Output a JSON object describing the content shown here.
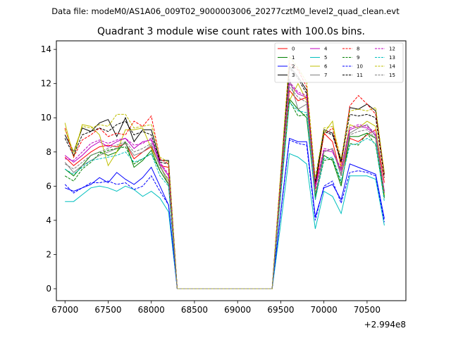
{
  "chart_data": {
    "type": "line",
    "suptitle": "Data file: modeM0/AS1A06_009T02_9000003006_20277cztM0_level2_quad_clean.evt",
    "title": "Quadrant 3 module wise count rates with 100.0s bins.",
    "xlabel": "",
    "ylabel": "",
    "x_offset_label": "+2.994e8",
    "xlim": [
      66900,
      70950
    ],
    "ylim": [
      -0.7,
      14.5
    ],
    "xticks": [
      67000,
      67500,
      68000,
      68500,
      69000,
      69500,
      70000,
      70500
    ],
    "xtick_labels": [
      "67000",
      "67500",
      "68000",
      "68500",
      "69000",
      "69500",
      "70000",
      "70500"
    ],
    "yticks": [
      0,
      2,
      4,
      6,
      8,
      10,
      12,
      14
    ],
    "ytick_labels": [
      "0",
      "2",
      "4",
      "6",
      "8",
      "10",
      "12",
      "14"
    ],
    "x": [
      67000,
      67100,
      67200,
      67300,
      67400,
      67500,
      67600,
      67700,
      67800,
      67900,
      68000,
      68100,
      68200,
      68300,
      68400,
      68500,
      68600,
      68700,
      68800,
      68900,
      69000,
      69100,
      69200,
      69300,
      69400,
      69500,
      69600,
      69700,
      69800,
      69900,
      70000,
      70100,
      70200,
      70300,
      70400,
      70500,
      70600,
      70700
    ],
    "series": [
      {
        "name": "0",
        "color": "#ff0000",
        "dash": "solid",
        "values": [
          7.7,
          7.2,
          7.6,
          8.0,
          8.3,
          8.4,
          8.3,
          8.5,
          7.6,
          8.0,
          8.3,
          7.2,
          7.1,
          0,
          0,
          0,
          0,
          0,
          0,
          0,
          0,
          0,
          0,
          0,
          0,
          5.8,
          11.6,
          11.0,
          11.2,
          5.8,
          9.1,
          8.6,
          6.6,
          8.8,
          8.6,
          9.0,
          9.3,
          6.2
        ]
      },
      {
        "name": "1",
        "color": "#008000",
        "dash": "solid",
        "values": [
          7.0,
          6.6,
          7.2,
          7.8,
          8.0,
          7.8,
          8.0,
          8.6,
          7.1,
          7.5,
          8.1,
          6.9,
          6.1,
          0,
          0,
          0,
          0,
          0,
          0,
          0,
          0,
          0,
          0,
          0,
          0,
          5.7,
          11.1,
          10.5,
          10.0,
          5.4,
          7.8,
          7.5,
          6.0,
          8.9,
          8.9,
          9.1,
          8.8,
          5.4
        ]
      },
      {
        "name": "2",
        "color": "#0000ff",
        "dash": "solid",
        "values": [
          5.9,
          5.7,
          5.9,
          6.1,
          6.5,
          6.2,
          6.8,
          6.4,
          6.1,
          6.5,
          7.1,
          6.0,
          4.9,
          0,
          0,
          0,
          0,
          0,
          0,
          0,
          0,
          0,
          0,
          0,
          0,
          4.5,
          8.8,
          8.6,
          8.6,
          4.2,
          5.9,
          6.1,
          5.2,
          7.3,
          7.1,
          6.9,
          6.7,
          4.1
        ]
      },
      {
        "name": "3",
        "color": "#000000",
        "dash": "solid",
        "values": [
          9.0,
          8.0,
          9.4,
          9.2,
          9.7,
          9.9,
          8.9,
          10.0,
          8.6,
          9.3,
          9.3,
          7.5,
          7.5,
          0,
          0,
          0,
          0,
          0,
          0,
          0,
          0,
          0,
          0,
          0,
          0,
          6.7,
          13.0,
          12.4,
          11.6,
          6.2,
          9.3,
          9.1,
          7.5,
          10.6,
          10.5,
          10.8,
          10.4,
          6.7
        ]
      },
      {
        "name": "4",
        "color": "#bf00bf",
        "dash": "solid",
        "values": [
          7.8,
          7.4,
          7.8,
          8.3,
          8.6,
          8.3,
          8.6,
          8.8,
          8.2,
          8.6,
          8.7,
          7.3,
          6.6,
          0,
          0,
          0,
          0,
          0,
          0,
          0,
          0,
          0,
          0,
          0,
          0,
          6.0,
          12.0,
          11.4,
          11.2,
          5.9,
          8.1,
          8.0,
          6.9,
          9.3,
          9.5,
          9.4,
          9.0,
          5.6
        ]
      },
      {
        "name": "5",
        "color": "#00bfbf",
        "dash": "solid",
        "values": [
          5.1,
          5.1,
          5.5,
          5.9,
          6.0,
          5.9,
          5.7,
          6.0,
          5.8,
          5.4,
          5.7,
          5.3,
          4.5,
          0,
          0,
          0,
          0,
          0,
          0,
          0,
          0,
          0,
          0,
          0,
          0,
          3.8,
          7.9,
          7.7,
          7.3,
          3.5,
          5.7,
          5.4,
          4.4,
          6.6,
          6.6,
          6.6,
          6.4,
          3.7
        ]
      },
      {
        "name": "6",
        "color": "#bfbf00",
        "dash": "solid",
        "values": [
          9.7,
          7.7,
          9.6,
          9.5,
          9.0,
          7.2,
          8.0,
          9.3,
          9.3,
          9.4,
          8.2,
          7.2,
          6.3,
          0,
          0,
          0,
          0,
          0,
          0,
          0,
          0,
          0,
          0,
          0,
          0,
          6.3,
          11.0,
          12.0,
          11.0,
          6.0,
          9.1,
          9.8,
          7.0,
          9.6,
          9.4,
          9.8,
          9.5,
          5.5
        ]
      },
      {
        "name": "7",
        "color": "#808080",
        "dash": "solid",
        "values": [
          7.4,
          6.8,
          7.2,
          7.5,
          7.8,
          8.0,
          8.2,
          8.5,
          7.8,
          8.0,
          8.4,
          7.2,
          6.1,
          0,
          0,
          0,
          0,
          0,
          0,
          0,
          0,
          0,
          0,
          0,
          0,
          6.0,
          12.3,
          10.5,
          10.8,
          5.2,
          8.0,
          8.2,
          6.6,
          9.1,
          9.4,
          9.6,
          8.9,
          5.7
        ]
      },
      {
        "name": "8",
        "color": "#ff0000",
        "dash": "dashed",
        "values": [
          9.4,
          7.7,
          8.7,
          9.0,
          9.4,
          8.9,
          9.1,
          9.0,
          9.8,
          9.5,
          10.1,
          7.6,
          7.3,
          0,
          0,
          0,
          0,
          0,
          0,
          0,
          0,
          0,
          0,
          0,
          0,
          6.7,
          13.2,
          12.8,
          11.8,
          6.0,
          9.0,
          9.4,
          7.2,
          10.7,
          11.3,
          10.8,
          10.2,
          6.7
        ]
      },
      {
        "name": "9",
        "color": "#008000",
        "dash": "dashed",
        "values": [
          6.6,
          6.3,
          7.0,
          7.4,
          7.9,
          8.1,
          8.2,
          8.3,
          7.3,
          7.6,
          7.9,
          6.9,
          6.1,
          0,
          0,
          0,
          0,
          0,
          0,
          0,
          0,
          0,
          0,
          0,
          0,
          5.6,
          11.0,
          10.1,
          10.2,
          5.3,
          7.5,
          7.6,
          6.2,
          8.5,
          8.4,
          9.1,
          8.4,
          5.3
        ]
      },
      {
        "name": "10",
        "color": "#0000ff",
        "dash": "dashed",
        "values": [
          6.1,
          5.6,
          5.9,
          6.2,
          6.2,
          6.3,
          6.1,
          6.2,
          5.8,
          6.0,
          6.6,
          5.7,
          4.9,
          0,
          0,
          0,
          0,
          0,
          0,
          0,
          0,
          0,
          0,
          0,
          0,
          4.4,
          8.7,
          8.5,
          8.4,
          4.0,
          6.0,
          6.3,
          5.0,
          6.8,
          6.9,
          6.8,
          6.6,
          3.9
        ]
      },
      {
        "name": "11",
        "color": "#000000",
        "dash": "dashed",
        "values": [
          8.8,
          7.8,
          9.0,
          9.2,
          9.4,
          9.2,
          9.6,
          9.8,
          9.0,
          9.2,
          9.0,
          7.4,
          7.3,
          0,
          0,
          0,
          0,
          0,
          0,
          0,
          0,
          0,
          0,
          0,
          0,
          6.6,
          12.9,
          12.3,
          11.4,
          6.1,
          9.2,
          9.0,
          7.4,
          10.2,
          10.1,
          10.2,
          10.0,
          6.5
        ]
      },
      {
        "name": "12",
        "color": "#bf00bf",
        "dash": "dashed",
        "values": [
          7.6,
          7.5,
          8.0,
          8.5,
          8.7,
          8.5,
          8.7,
          8.8,
          8.4,
          8.5,
          8.8,
          7.4,
          6.7,
          0,
          0,
          0,
          0,
          0,
          0,
          0,
          0,
          0,
          0,
          0,
          0,
          6.1,
          12.1,
          11.5,
          11.3,
          6.0,
          8.2,
          8.1,
          7.0,
          9.4,
          9.6,
          9.5,
          9.1,
          5.7
        ]
      },
      {
        "name": "13",
        "color": "#00bfbf",
        "dash": "dashed",
        "values": [
          7.0,
          6.7,
          7.1,
          7.5,
          7.6,
          7.7,
          7.8,
          8.0,
          7.4,
          7.6,
          7.9,
          6.6,
          6.0,
          0,
          0,
          0,
          0,
          0,
          0,
          0,
          0,
          0,
          0,
          0,
          0,
          5.5,
          10.9,
          10.4,
          10.3,
          5.2,
          7.6,
          7.7,
          6.3,
          8.4,
          8.5,
          8.8,
          8.5,
          5.1
        ]
      },
      {
        "name": "14",
        "color": "#bfbf00",
        "dash": "dashed",
        "values": [
          9.3,
          8.0,
          9.5,
          9.4,
          9.6,
          9.5,
          10.2,
          10.2,
          9.4,
          9.5,
          9.6,
          7.7,
          7.4,
          0,
          0,
          0,
          0,
          0,
          0,
          0,
          0,
          0,
          0,
          0,
          0,
          6.8,
          13.6,
          12.9,
          12.1,
          6.5,
          9.4,
          9.5,
          7.6,
          10.4,
          10.5,
          10.4,
          10.6,
          6.8
        ]
      },
      {
        "name": "15",
        "color": "#808080",
        "dash": "dashed",
        "values": [
          7.3,
          7.0,
          7.4,
          7.8,
          8.0,
          8.2,
          8.4,
          8.6,
          8.0,
          8.2,
          8.5,
          7.1,
          6.4,
          0,
          0,
          0,
          0,
          0,
          0,
          0,
          0,
          0,
          0,
          0,
          0,
          5.9,
          11.8,
          11.2,
          10.9,
          5.6,
          8.0,
          8.2,
          6.7,
          9.0,
          9.2,
          9.3,
          8.8,
          5.6
        ]
      }
    ],
    "legend_location": "top-right",
    "grid": false
  }
}
